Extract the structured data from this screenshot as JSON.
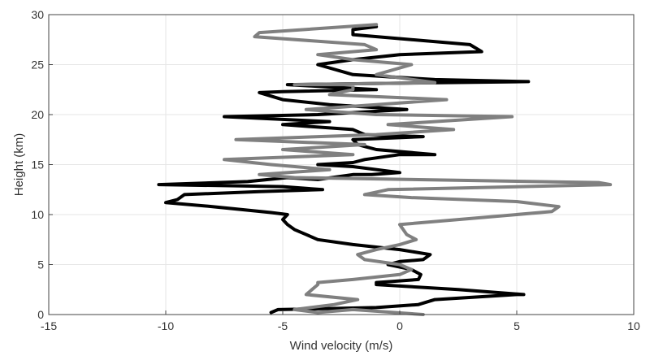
{
  "chart_data": {
    "type": "line",
    "title": "",
    "xlabel": "Wind velocity (m/s)",
    "ylabel": "Height (km)",
    "xlim": [
      -15,
      10
    ],
    "ylim": [
      0,
      30
    ],
    "xticks": [
      -15,
      -10,
      -5,
      0,
      5,
      10
    ],
    "yticks": [
      0,
      5,
      10,
      15,
      20,
      25,
      30
    ],
    "grid": true,
    "legend": "none",
    "series": [
      {
        "color": "#000000",
        "points": [
          [
            -5.5,
            0.2
          ],
          [
            -5.2,
            0.5
          ],
          [
            -1,
            0.7
          ],
          [
            0.8,
            1
          ],
          [
            1.5,
            1.5
          ],
          [
            5,
            2
          ],
          [
            5.3,
            2
          ],
          [
            2.5,
            2.5
          ],
          [
            -1,
            3
          ],
          [
            -1,
            3.2
          ],
          [
            0.8,
            3.5
          ],
          [
            0.9,
            4
          ],
          [
            0.5,
            4.5
          ],
          [
            -0.5,
            5
          ],
          [
            0,
            5.3
          ],
          [
            1,
            5.5
          ],
          [
            1.3,
            6
          ],
          [
            0,
            6.5
          ],
          [
            -2,
            7
          ],
          [
            -3.5,
            7.5
          ],
          [
            -4,
            8
          ],
          [
            -4.5,
            8.5
          ],
          [
            -4.8,
            9
          ],
          [
            -5,
            9.5
          ],
          [
            -4.8,
            10
          ],
          [
            -5.5,
            10.2
          ],
          [
            -8,
            10.8
          ],
          [
            -10,
            11.2
          ],
          [
            -9.5,
            11.5
          ],
          [
            -9.2,
            12
          ],
          [
            -6,
            12.3
          ],
          [
            -3.3,
            12.5
          ],
          [
            -5,
            12.8
          ],
          [
            -10.3,
            13
          ],
          [
            -6.5,
            13.3
          ],
          [
            -4.8,
            13.7
          ],
          [
            -3.5,
            13.5
          ],
          [
            -2,
            14
          ],
          [
            -1.2,
            14
          ],
          [
            0,
            14.2
          ],
          [
            -2,
            14.8
          ],
          [
            -3.5,
            15
          ],
          [
            -2,
            15.2
          ],
          [
            -1.5,
            15.5
          ],
          [
            0,
            16
          ],
          [
            1.5,
            16
          ],
          [
            -1,
            16.5
          ],
          [
            -1.8,
            17
          ],
          [
            -2,
            17.5
          ],
          [
            1,
            17.8
          ],
          [
            -1.5,
            18
          ],
          [
            -2,
            18.5
          ],
          [
            -5,
            19
          ],
          [
            -3,
            19.3
          ],
          [
            -7.5,
            19.8
          ],
          [
            -3.5,
            20
          ],
          [
            0.3,
            20.5
          ],
          [
            -3,
            21
          ],
          [
            -5,
            21.5
          ],
          [
            -6,
            22.2
          ],
          [
            -5,
            22.3
          ],
          [
            -1,
            22.5
          ],
          [
            -4.8,
            23
          ],
          [
            5.5,
            23.3
          ],
          [
            1.5,
            23.5
          ],
          [
            -2,
            24
          ],
          [
            -3.5,
            25
          ],
          [
            -2,
            25.5
          ],
          [
            0,
            26
          ],
          [
            3.5,
            26.3
          ],
          [
            3,
            27
          ],
          [
            -2,
            28
          ],
          [
            -2,
            28.5
          ],
          [
            -1,
            28.8
          ]
        ]
      },
      {
        "color": "#808080",
        "points": [
          [
            1,
            0
          ],
          [
            -2,
            0.5
          ],
          [
            -3.5,
            0.2
          ],
          [
            -4.5,
            0.5
          ],
          [
            -2.8,
            1
          ],
          [
            -1.8,
            1.5
          ],
          [
            -4,
            2
          ],
          [
            -3.5,
            3
          ],
          [
            -3.5,
            3.2
          ],
          [
            -2,
            3.5
          ],
          [
            0,
            4
          ],
          [
            0.5,
            4.5
          ],
          [
            0,
            5
          ],
          [
            -1.5,
            5.5
          ],
          [
            -1.8,
            6
          ],
          [
            -1,
            6.5
          ],
          [
            0,
            7
          ],
          [
            0.7,
            7.5
          ],
          [
            0.3,
            8
          ],
          [
            0,
            9
          ],
          [
            2.5,
            9.5
          ],
          [
            6.5,
            10.3
          ],
          [
            6.8,
            10.8
          ],
          [
            5,
            11.3
          ],
          [
            0.5,
            11.7
          ],
          [
            -1.5,
            12
          ],
          [
            -0.5,
            12.5
          ],
          [
            9,
            13
          ],
          [
            8.5,
            13.2
          ],
          [
            -4.5,
            13.7
          ],
          [
            -6,
            14
          ],
          [
            -3,
            14.5
          ],
          [
            -5.5,
            15
          ],
          [
            -7.5,
            15.5
          ],
          [
            -2,
            16
          ],
          [
            -5,
            16.5
          ],
          [
            -1.5,
            17
          ],
          [
            -7,
            17.5
          ],
          [
            -1,
            18
          ],
          [
            2.3,
            18.5
          ],
          [
            -0.5,
            19
          ],
          [
            4.8,
            19.8
          ],
          [
            -1,
            20
          ],
          [
            -4,
            20.5
          ],
          [
            -1,
            21
          ],
          [
            2,
            21.5
          ],
          [
            -3,
            22
          ],
          [
            -2,
            22.5
          ],
          [
            -2,
            23
          ],
          [
            -4.5,
            23
          ],
          [
            1.5,
            23.2
          ],
          [
            -1,
            24
          ],
          [
            0.5,
            25
          ],
          [
            -2,
            25.5
          ],
          [
            -3.5,
            26
          ],
          [
            -1,
            26.5
          ],
          [
            -1.5,
            27
          ],
          [
            -6.2,
            27.8
          ],
          [
            -6,
            28.2
          ],
          [
            -1,
            29
          ]
        ]
      }
    ]
  }
}
